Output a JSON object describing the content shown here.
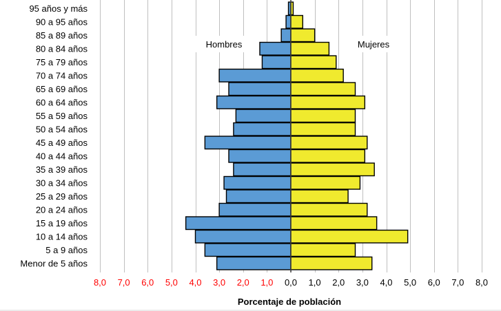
{
  "chart_data": {
    "type": "bar",
    "orientation": "horizontal-pyramid",
    "categories": [
      "95 años y más",
      "90 a 95 años",
      "85 a 89 años",
      "80 a 84 años",
      "75 a 79 años",
      "70 a 74 años",
      "65 a 69 años",
      "60 a 64 años",
      "55 a 59 años",
      "50 a 54 años",
      "45 a 49 años",
      "40 a 44 años",
      "35 a 39 años",
      "30 a 34 años",
      "25 a 29 años",
      "20 a 24 años",
      "15 a 19 años",
      "10 a 14 años",
      "5 a 9 años",
      "Menor de 5 años"
    ],
    "series": [
      {
        "name": "Hombres",
        "color": "#5b9bd5",
        "values": [
          0.1,
          0.2,
          0.4,
          1.3,
          1.2,
          3.0,
          2.6,
          3.1,
          2.3,
          2.4,
          3.6,
          2.6,
          2.4,
          2.8,
          2.7,
          3.0,
          4.4,
          4.0,
          3.6,
          3.1
        ]
      },
      {
        "name": "Mujeres",
        "color": "#f0ea2e",
        "values": [
          0.1,
          0.5,
          1.0,
          1.6,
          1.9,
          2.2,
          2.7,
          3.1,
          2.7,
          2.7,
          3.2,
          3.1,
          3.5,
          2.9,
          2.4,
          3.2,
          3.6,
          4.9,
          2.7,
          3.4
        ]
      }
    ],
    "xticks": [
      "8,0",
      "7,0",
      "6,0",
      "5,0",
      "4,0",
      "3,0",
      "2,0",
      "1,0",
      "0,0",
      "1,0",
      "2,0",
      "3,0",
      "4,0",
      "5,0",
      "6,0",
      "7,0",
      "8,0"
    ],
    "xlim": [
      -8,
      8
    ],
    "xlabel": "Porcentaje de población",
    "grid": true,
    "legend": "inside-top"
  },
  "colors": {
    "left_tick": "#ff0000",
    "right_tick": "#000000",
    "grid": "#bfbfbf",
    "bar_outline": "#000000"
  }
}
